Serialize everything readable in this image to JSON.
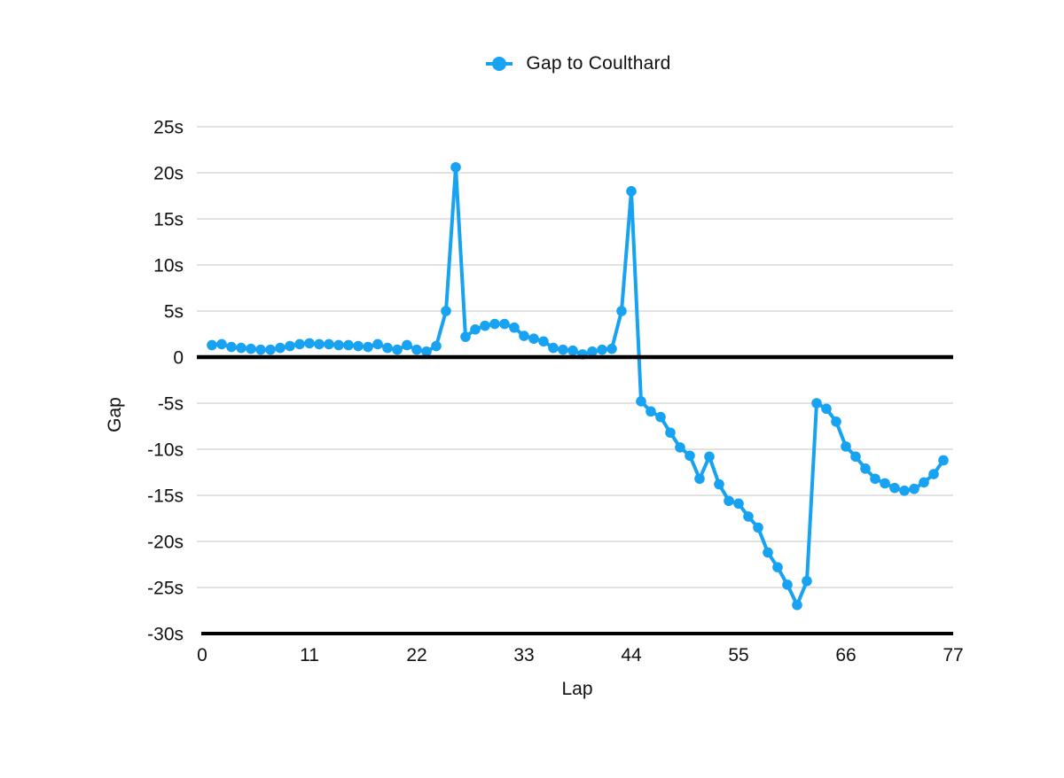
{
  "legend": {
    "label": "Gap to Coulthard",
    "marker": "circle-on-line-icon"
  },
  "colors": {
    "series": "#17a2f2",
    "grid": "#d9d9d9",
    "axis": "#000000",
    "text": "#111111",
    "background": "#ffffff"
  },
  "x_axis": {
    "title": "Lap",
    "min": 0,
    "max": 77,
    "ticks": [
      0,
      11,
      22,
      33,
      44,
      55,
      66,
      77
    ]
  },
  "y_axis": {
    "title": "Gap",
    "min": -30,
    "max": 25,
    "tick_values": [
      25,
      20,
      15,
      10,
      5,
      0,
      -5,
      -10,
      -15,
      -20,
      -25,
      -30
    ],
    "tick_labels": [
      "25s",
      "20s",
      "15s",
      "10s",
      "5s",
      "0",
      "-5s",
      "-10s",
      "-15s",
      "-20s",
      "-25s",
      "-30s"
    ]
  },
  "chart_data": {
    "type": "line",
    "title": "",
    "xlabel": "Lap",
    "ylabel": "Gap",
    "xlim": [
      0,
      77
    ],
    "ylim": [
      -30,
      25
    ],
    "grid": true,
    "legend_position": "top-center",
    "zero_baseline": true,
    "series": [
      {
        "name": "Gap to Coulthard",
        "color": "#17a2f2",
        "marker": "circle",
        "x": [
          1,
          2,
          3,
          4,
          5,
          6,
          7,
          8,
          9,
          10,
          11,
          12,
          13,
          14,
          15,
          16,
          17,
          18,
          19,
          20,
          21,
          22,
          23,
          24,
          25,
          26,
          27,
          28,
          29,
          30,
          31,
          32,
          33,
          34,
          35,
          36,
          37,
          38,
          39,
          40,
          41,
          42,
          43,
          44,
          45,
          46,
          47,
          48,
          49,
          50,
          51,
          52,
          53,
          54,
          55,
          56,
          57,
          58,
          59,
          60,
          61,
          62,
          63,
          64,
          65,
          66,
          67,
          68,
          69,
          70,
          71,
          72,
          73,
          74,
          75,
          76
        ],
        "y": [
          1.3,
          1.4,
          1.1,
          1.0,
          0.9,
          0.8,
          0.8,
          1.0,
          1.2,
          1.4,
          1.5,
          1.4,
          1.4,
          1.3,
          1.3,
          1.2,
          1.1,
          1.4,
          1.0,
          0.8,
          1.3,
          0.8,
          0.6,
          1.2,
          5.0,
          20.6,
          2.2,
          3.0,
          3.4,
          3.6,
          3.6,
          3.2,
          2.3,
          2.0,
          1.7,
          1.0,
          0.8,
          0.7,
          0.3,
          0.6,
          0.8,
          0.9,
          5.0,
          18.0,
          -4.8,
          -5.9,
          -6.5,
          -8.2,
          -9.8,
          -10.7,
          -13.2,
          -10.8,
          -13.8,
          -15.6,
          -15.9,
          -17.3,
          -18.5,
          -21.2,
          -22.8,
          -24.7,
          -26.9,
          -24.3,
          -5.0,
          -5.6,
          -7.0,
          -9.7,
          -10.8,
          -12.1,
          -13.2,
          -13.7,
          -14.2,
          -14.5,
          -14.3,
          -13.6,
          -12.7,
          -11.2
        ]
      }
    ]
  }
}
